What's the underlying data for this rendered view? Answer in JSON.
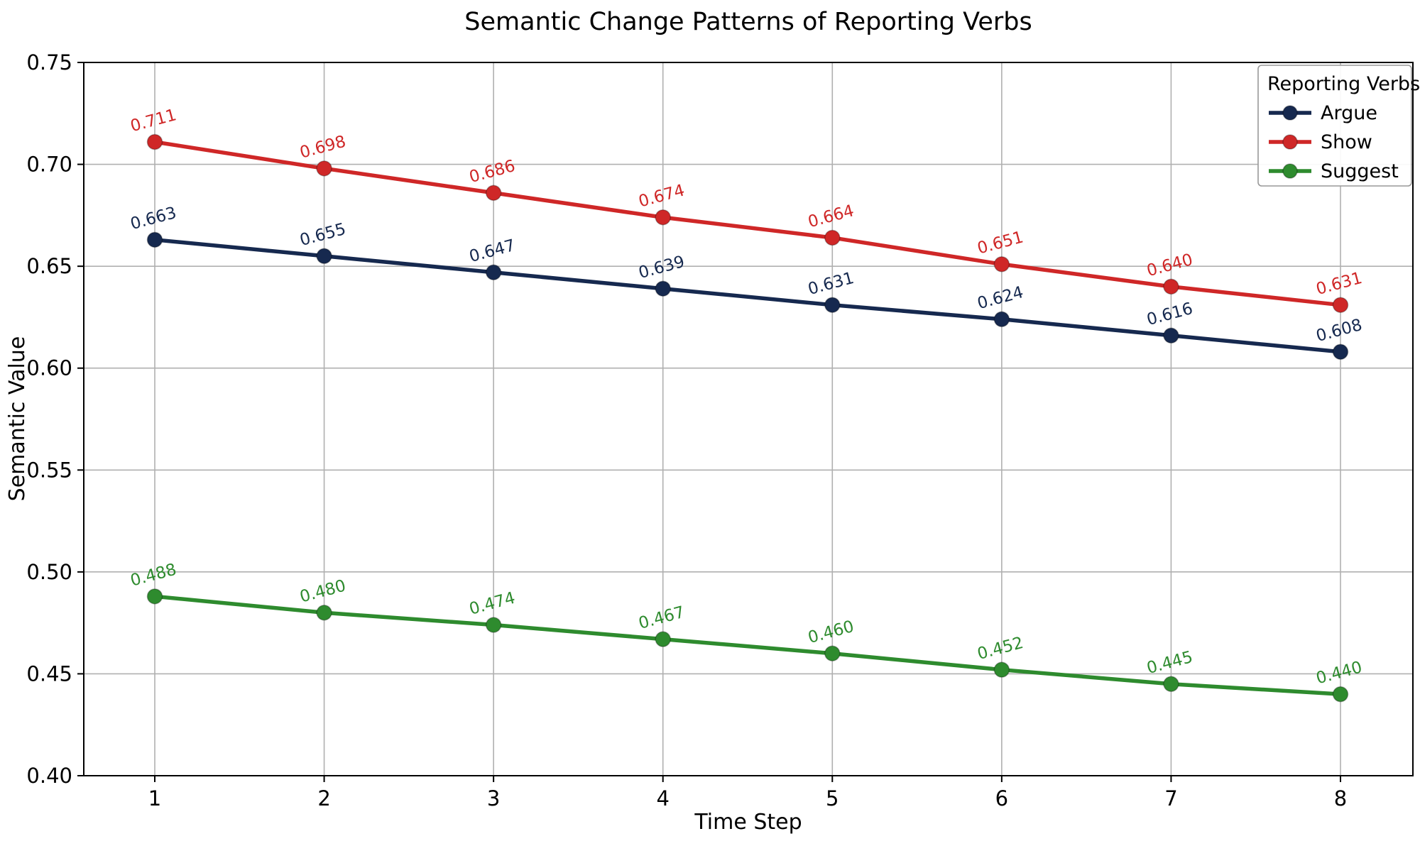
{
  "chart_data": {
    "type": "line",
    "title": "Semantic Change Patterns of Reporting Verbs",
    "xlabel": "Time Step",
    "ylabel": "Semantic Value",
    "legend_title": "Reporting Verbs",
    "legend_position": "upper right",
    "grid": true,
    "x": [
      1,
      2,
      3,
      4,
      5,
      6,
      7,
      8
    ],
    "ylim": [
      0.4,
      0.75
    ],
    "yticks": [
      0.4,
      0.45,
      0.5,
      0.55,
      0.6,
      0.65,
      0.7,
      0.75
    ],
    "series": [
      {
        "name": "Argue",
        "color": "#16294f",
        "values": [
          0.663,
          0.655,
          0.647,
          0.639,
          0.631,
          0.624,
          0.616,
          0.608
        ]
      },
      {
        "name": "Show",
        "color": "#cf2727",
        "values": [
          0.711,
          0.698,
          0.686,
          0.674,
          0.664,
          0.651,
          0.64,
          0.631
        ]
      },
      {
        "name": "Suggest",
        "color": "#2e8b2e",
        "values": [
          0.488,
          0.48,
          0.474,
          0.467,
          0.46,
          0.452,
          0.445,
          0.44
        ]
      }
    ],
    "label_format_decimals": 3,
    "label_rotation_deg": -15,
    "grid_color": "#b0b0b0",
    "axis_color": "#000000"
  }
}
